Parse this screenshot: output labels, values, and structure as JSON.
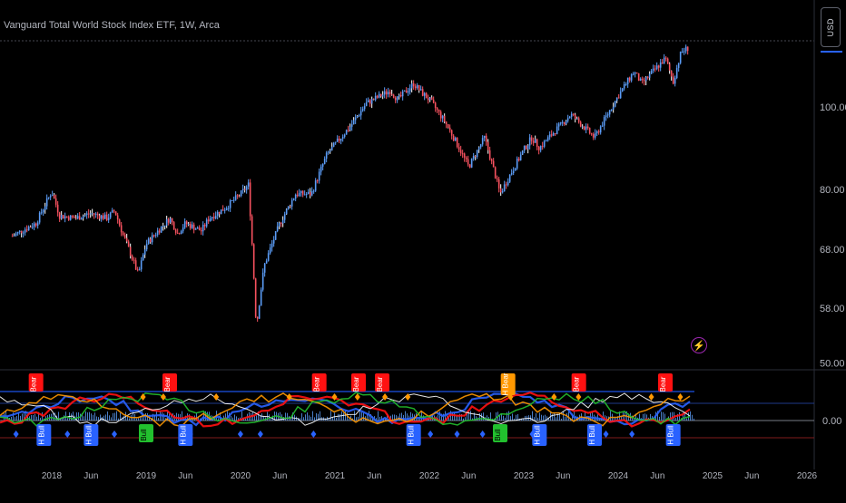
{
  "header": {
    "symbol_title": "Vanguard Total World Stock Index ETF, 1W, Arca",
    "currency_button": "USD"
  },
  "chart_data": {
    "type": "candlestick",
    "title": "Vanguard Total World Stock Index ETF, 1W, Arca",
    "price_axis": {
      "scale": "log",
      "tick_labels": [
        "100.00",
        "80.00",
        "68.00",
        "58.00",
        "50.00"
      ],
      "ticks": [
        100,
        80,
        68,
        58,
        50
      ]
    },
    "time_axis": {
      "tick_labels": [
        "2018",
        "Jun",
        "2019",
        "Jun",
        "2020",
        "Jun",
        "2021",
        "Jun",
        "2022",
        "Jun",
        "2023",
        "Jun",
        "2024",
        "Jun",
        "2025",
        "Jun",
        "2026"
      ],
      "ticks": [
        "2018-01",
        "2018-06",
        "2019-01",
        "2019-06",
        "2020-01",
        "2020-06",
        "2021-01",
        "2021-06",
        "2022-01",
        "2022-06",
        "2023-01",
        "2023-06",
        "2024-01",
        "2024-06",
        "2025-01",
        "2025-06",
        "2026-01"
      ]
    },
    "colors": {
      "up": "#5b9cf6",
      "down": "#f7525f",
      "wick_white": "#ffffff"
    },
    "price_anchors": [
      [
        "2017-08",
        70.5
      ],
      [
        "2017-11",
        73.0
      ],
      [
        "2018-01",
        79.5
      ],
      [
        "2018-02",
        74.5
      ],
      [
        "2018-04",
        74.0
      ],
      [
        "2018-06",
        75.0
      ],
      [
        "2018-08",
        74.0
      ],
      [
        "2018-09",
        75.5
      ],
      [
        "2018-10",
        71.0
      ],
      [
        "2018-12",
        63.5
      ],
      [
        "2019-01",
        69.0
      ],
      [
        "2019-04",
        74.0
      ],
      [
        "2019-05",
        71.0
      ],
      [
        "2019-06",
        73.0
      ],
      [
        "2019-08",
        71.5
      ],
      [
        "2019-09",
        74.0
      ],
      [
        "2019-11",
        76.0
      ],
      [
        "2020-01",
        79.0
      ],
      [
        "2020-02",
        81.0
      ],
      [
        "2020-03",
        55.0
      ],
      [
        "2020-04",
        65.0
      ],
      [
        "2020-06",
        73.0
      ],
      [
        "2020-08",
        79.0
      ],
      [
        "2020-10",
        79.0
      ],
      [
        "2020-12",
        88.0
      ],
      [
        "2021-03",
        95.0
      ],
      [
        "2021-05",
        101.0
      ],
      [
        "2021-08",
        104.5
      ],
      [
        "2021-09",
        102.0
      ],
      [
        "2021-11",
        106.5
      ],
      [
        "2021-12",
        104.0
      ],
      [
        "2022-01",
        102.0
      ],
      [
        "2022-03",
        96.0
      ],
      [
        "2022-06",
        85.0
      ],
      [
        "2022-08",
        92.0
      ],
      [
        "2022-10",
        79.0
      ],
      [
        "2023-01",
        89.0
      ],
      [
        "2023-02",
        92.0
      ],
      [
        "2023-03",
        89.5
      ],
      [
        "2023-07",
        98.0
      ],
      [
        "2023-10",
        92.0
      ],
      [
        "2024-01",
        103.0
      ],
      [
        "2024-03",
        110.0
      ],
      [
        "2024-04",
        106.5
      ],
      [
        "2024-07",
        114.0
      ],
      [
        "2024-08",
        107.0
      ],
      [
        "2024-09",
        116.0
      ],
      [
        "2024-10",
        117.5
      ]
    ],
    "indicator": {
      "zero_label": "0.00",
      "signal_labels": [
        {
          "text": "Bear",
          "date": "2017-11",
          "kind": "bear"
        },
        {
          "text": "H Bull",
          "date": "2017-12",
          "kind": "hbull"
        },
        {
          "text": "H Bull",
          "date": "2018-06",
          "kind": "hbull"
        },
        {
          "text": "Bull",
          "date": "2019-01",
          "kind": "bull"
        },
        {
          "text": "Bear",
          "date": "2019-04",
          "kind": "bear"
        },
        {
          "text": "H Bull",
          "date": "2019-06",
          "kind": "hbull"
        },
        {
          "text": "Bear",
          "date": "2020-11",
          "kind": "bear"
        },
        {
          "text": "Bear",
          "date": "2021-04",
          "kind": "bear"
        },
        {
          "text": "Bear",
          "date": "2021-07",
          "kind": "bear"
        },
        {
          "text": "H Bull",
          "date": "2021-11",
          "kind": "hbull"
        },
        {
          "text": "H Bear",
          "date": "2022-11",
          "kind": "hbear"
        },
        {
          "text": "Bull",
          "date": "2022-10",
          "kind": "bull"
        },
        {
          "text": "H Bull",
          "date": "2023-03",
          "kind": "hbull"
        },
        {
          "text": "Bear",
          "date": "2023-08",
          "kind": "bear"
        },
        {
          "text": "H Bull",
          "date": "2023-10",
          "kind": "hbull"
        },
        {
          "text": "Bear",
          "date": "2024-07",
          "kind": "bear"
        },
        {
          "text": "H Bull",
          "date": "2024-08",
          "kind": "hbull"
        }
      ],
      "label_colors": {
        "bear": "#ff1111",
        "hbull": "#2962ff",
        "bull": "#22c02e",
        "hbear": "#ff9800"
      }
    }
  }
}
